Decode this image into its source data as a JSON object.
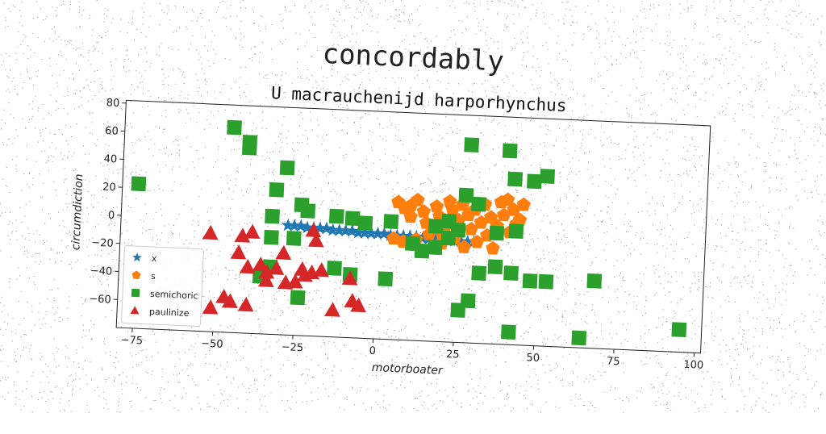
{
  "heading": "concordably",
  "chart_data": {
    "type": "scatter",
    "title": "U macrauchenijd harporhynchus",
    "xlabel": "motorboater",
    "ylabel": "circumdiction",
    "xlim": [
      -80,
      102
    ],
    "ylim": [
      -80,
      82
    ],
    "xticks": [
      -75,
      -50,
      -25,
      0,
      25,
      50,
      75,
      100
    ],
    "yticks": [
      -60,
      -40,
      -20,
      0,
      20,
      40,
      60,
      80
    ],
    "xtick_labels": [
      "−75",
      "−50",
      "−25",
      "0",
      "25",
      "50",
      "75",
      "100"
    ],
    "ytick_labels": [
      "−60",
      "−40",
      "−20",
      "0",
      "20",
      "40",
      "60",
      "80"
    ],
    "legend_position": "lower-left",
    "series": [
      {
        "name": "x",
        "marker": "star",
        "color": "#1f77b4",
        "points": [
          [
            -28,
            -2
          ],
          [
            -26,
            -2
          ],
          [
            -24,
            -2
          ],
          [
            -22,
            -3
          ],
          [
            -20,
            -3
          ],
          [
            -18,
            -3
          ],
          [
            -16,
            -3
          ],
          [
            -14,
            -4
          ],
          [
            -12,
            -4
          ],
          [
            -10,
            -4
          ],
          [
            -8,
            -4
          ],
          [
            -6,
            -5
          ],
          [
            -4,
            -5
          ],
          [
            -2,
            -5
          ],
          [
            0,
            -5
          ],
          [
            2,
            -5
          ],
          [
            4,
            -6
          ],
          [
            6,
            -6
          ],
          [
            8,
            -6
          ],
          [
            10,
            -6
          ],
          [
            12,
            -6
          ],
          [
            14,
            -7
          ],
          [
            16,
            -7
          ],
          [
            18,
            -7
          ],
          [
            20,
            -7
          ],
          [
            22,
            -7
          ],
          [
            24,
            -8
          ],
          [
            26,
            -8
          ],
          [
            28,
            -8
          ],
          [
            30,
            -8
          ]
        ]
      },
      {
        "name": "s",
        "marker": "pentagon",
        "color": "#ff7f0e",
        "points": [
          [
            6,
            18
          ],
          [
            8,
            14
          ],
          [
            10,
            8
          ],
          [
            12,
            20
          ],
          [
            14,
            12
          ],
          [
            15,
            4
          ],
          [
            16,
            -4
          ],
          [
            18,
            16
          ],
          [
            19,
            9
          ],
          [
            20,
            -10
          ],
          [
            21,
            2
          ],
          [
            22,
            20
          ],
          [
            23,
            14
          ],
          [
            24,
            -6
          ],
          [
            25,
            7
          ],
          [
            26,
            18
          ],
          [
            27,
            -12
          ],
          [
            28,
            11
          ],
          [
            29,
            1
          ],
          [
            30,
            15
          ],
          [
            31,
            -8
          ],
          [
            32,
            6
          ],
          [
            33,
            19
          ],
          [
            34,
            -3
          ],
          [
            35,
            10
          ],
          [
            36,
            -12
          ],
          [
            37,
            4
          ],
          [
            38,
            21
          ],
          [
            39,
            12
          ],
          [
            40,
            23
          ],
          [
            41,
            0
          ],
          [
            42,
            16
          ],
          [
            43,
            6
          ],
          [
            44,
            9
          ],
          [
            45,
            20
          ],
          [
            12,
            -8
          ],
          [
            14,
            -16
          ],
          [
            18,
            -14
          ],
          [
            8,
            -10
          ],
          [
            20,
            -3
          ],
          [
            5,
            -8
          ],
          [
            10,
            16
          ]
        ]
      },
      {
        "name": "semichoric",
        "marker": "square",
        "color": "#2ca02c",
        "points": [
          [
            -75,
            23
          ],
          [
            -46,
            66
          ],
          [
            -41,
            56
          ],
          [
            -41,
            52
          ],
          [
            -29,
            39
          ],
          [
            -32,
            23
          ],
          [
            -24,
            13
          ],
          [
            -22,
            9
          ],
          [
            -13,
            6
          ],
          [
            -8,
            5
          ],
          [
            -4,
            2
          ],
          [
            4,
            4
          ],
          [
            -33,
            4
          ],
          [
            -33,
            -11
          ],
          [
            -26,
            -11
          ],
          [
            -33,
            -32
          ],
          [
            -13,
            -31
          ],
          [
            -8,
            -35
          ],
          [
            -36,
            -39
          ],
          [
            -24,
            -53
          ],
          [
            3,
            -37
          ],
          [
            11,
            -11
          ],
          [
            14,
            -16
          ],
          [
            18,
            2
          ],
          [
            22,
            -6
          ],
          [
            25,
            0
          ],
          [
            27,
            25
          ],
          [
            28,
            61
          ],
          [
            31,
            19
          ],
          [
            37,
            -1
          ],
          [
            37,
            -25
          ],
          [
            40,
            58
          ],
          [
            42,
            38
          ],
          [
            43,
            1
          ],
          [
            42,
            -29
          ],
          [
            48,
            37
          ],
          [
            52,
            41
          ],
          [
            48,
            -34
          ],
          [
            53,
            -34
          ],
          [
            68,
            -32
          ],
          [
            26,
            -57
          ],
          [
            29,
            -50
          ],
          [
            42,
            -71
          ],
          [
            64,
            -73
          ],
          [
            95,
            -64
          ],
          [
            18,
            -13
          ],
          [
            22,
            6
          ],
          [
            32,
            -30
          ]
        ]
      },
      {
        "name": "paulinize",
        "marker": "triangle",
        "color": "#d62728",
        "points": [
          [
            -52,
            -10
          ],
          [
            -42,
            -11
          ],
          [
            -39,
            -8
          ],
          [
            -43,
            -23
          ],
          [
            -40,
            -33
          ],
          [
            -36,
            -31
          ],
          [
            -34,
            -42
          ],
          [
            -31,
            -33
          ],
          [
            -29,
            -22
          ],
          [
            -28,
            -43
          ],
          [
            -25,
            -42
          ],
          [
            -22,
            -37
          ],
          [
            -20,
            -35
          ],
          [
            -19,
            -12
          ],
          [
            -17,
            -33
          ],
          [
            -13,
            -61
          ],
          [
            -8,
            -38
          ],
          [
            -7,
            -54
          ],
          [
            -5,
            -57
          ],
          [
            -51,
            -63
          ],
          [
            -47,
            -55
          ],
          [
            -45,
            -58
          ],
          [
            -40,
            -60
          ],
          [
            -34,
            -36
          ],
          [
            -23,
            -33
          ],
          [
            -20,
            -5
          ]
        ]
      }
    ]
  }
}
